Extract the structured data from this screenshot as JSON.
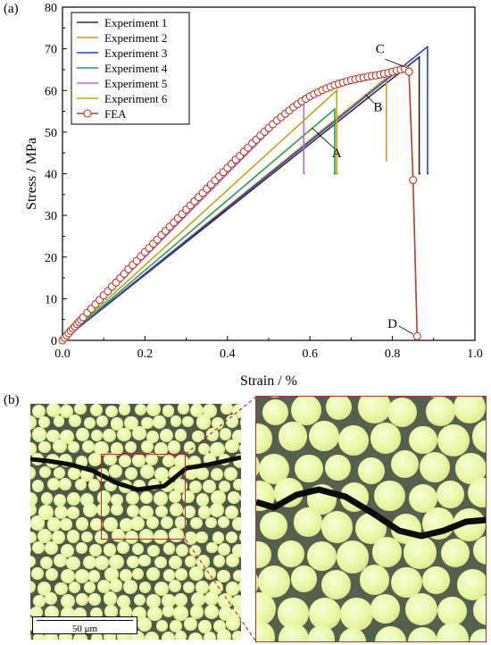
{
  "panel_labels": {
    "a": "(a)",
    "b": "(b)"
  },
  "scale_bar": {
    "label": "50 μm"
  },
  "colors": {
    "Experiment 1": "#2b2b2b",
    "Experiment 2": "#d19b14",
    "Experiment 3": "#2a3fd1",
    "Experiment 4": "#2e9a52",
    "Experiment 5": "#b66ad8",
    "Experiment 6": "#b8a81a",
    "FEA": "#b43a2a",
    "zoom_box": "#b0303a"
  },
  "chart_data": {
    "type": "line",
    "xlabel": "Strain / %",
    "ylabel": "Stress / MPa",
    "xlim": [
      0.0,
      1.0
    ],
    "ylim": [
      0,
      80
    ],
    "x_ticks": [
      "0.0",
      "0.2",
      "0.4",
      "0.6",
      "0.8",
      "1.0"
    ],
    "y_ticks": [
      "0",
      "10",
      "20",
      "30",
      "40",
      "50",
      "60",
      "70",
      "80"
    ],
    "legend_position": "top-left",
    "series": [
      {
        "name": "Experiment 1",
        "x": [
          0.0,
          0.865,
          0.865,
          0.868
        ],
        "y": [
          0.0,
          68.0,
          40.0,
          40.0
        ]
      },
      {
        "name": "Experiment 2",
        "x": [
          0.0,
          0.785,
          0.785,
          0.785
        ],
        "y": [
          0.0,
          63.0,
          43.0,
          43.0
        ]
      },
      {
        "name": "Experiment 3",
        "x": [
          0.0,
          0.885,
          0.885,
          0.888
        ],
        "y": [
          0.0,
          70.5,
          40.0,
          40.0
        ]
      },
      {
        "name": "Experiment 4",
        "x": [
          0.0,
          0.66,
          0.66,
          0.663
        ],
        "y": [
          0.0,
          55.5,
          40.0,
          40.0
        ]
      },
      {
        "name": "Experiment 5",
        "x": [
          0.0,
          0.585,
          0.585,
          0.588
        ],
        "y": [
          0.0,
          58.5,
          40.0,
          40.0
        ]
      },
      {
        "name": "Experiment 6",
        "x": [
          0.0,
          0.665,
          0.665,
          0.668
        ],
        "y": [
          0.0,
          60.0,
          40.0,
          40.0
        ]
      },
      {
        "name": "FEA",
        "x": [
          0.0,
          0.005,
          0.01,
          0.015,
          0.02,
          0.025,
          0.03,
          0.035,
          0.04,
          0.045,
          0.05,
          0.06,
          0.07,
          0.08,
          0.09,
          0.1,
          0.11,
          0.12,
          0.13,
          0.14,
          0.15,
          0.16,
          0.17,
          0.18,
          0.19,
          0.2,
          0.21,
          0.22,
          0.23,
          0.24,
          0.25,
          0.26,
          0.27,
          0.28,
          0.29,
          0.3,
          0.31,
          0.32,
          0.33,
          0.34,
          0.35,
          0.36,
          0.37,
          0.38,
          0.39,
          0.4,
          0.41,
          0.42,
          0.43,
          0.44,
          0.45,
          0.46,
          0.47,
          0.48,
          0.49,
          0.5,
          0.51,
          0.52,
          0.53,
          0.54,
          0.55,
          0.56,
          0.57,
          0.58,
          0.59,
          0.6,
          0.61,
          0.62,
          0.63,
          0.64,
          0.65,
          0.66,
          0.67,
          0.68,
          0.69,
          0.7,
          0.71,
          0.72,
          0.73,
          0.74,
          0.75,
          0.76,
          0.77,
          0.78,
          0.79,
          0.8,
          0.81,
          0.82,
          0.83,
          0.84,
          0.85,
          0.86
        ],
        "y": [
          0.0,
          0.6,
          1.2,
          1.7,
          2.3,
          2.8,
          3.3,
          3.9,
          4.4,
          4.9,
          5.5,
          6.6,
          7.6,
          8.7,
          9.7,
          10.8,
          11.8,
          12.9,
          13.9,
          15.0,
          16.0,
          17.1,
          18.1,
          19.1,
          20.2,
          21.2,
          22.2,
          23.2,
          24.2,
          25.3,
          26.3,
          27.3,
          28.3,
          29.3,
          30.3,
          31.4,
          32.4,
          33.4,
          34.4,
          35.4,
          36.4,
          37.4,
          38.4,
          39.4,
          40.4,
          41.4,
          42.4,
          43.4,
          44.3,
          45.3,
          46.3,
          47.3,
          48.2,
          49.2,
          50.1,
          51.0,
          51.9,
          52.8,
          53.6,
          54.4,
          55.2,
          56.0,
          56.7,
          57.4,
          58.0,
          58.6,
          59.1,
          59.6,
          60.1,
          60.5,
          60.9,
          61.3,
          61.6,
          61.9,
          62.2,
          62.5,
          62.7,
          62.9,
          63.1,
          63.3,
          63.5,
          63.6,
          63.8,
          64.0,
          64.2,
          64.5,
          64.8,
          65.0,
          65.2,
          64.5,
          38.5,
          1.0
        ]
      }
    ],
    "annotations": [
      {
        "label": "A",
        "x": 0.665,
        "y": 44.0
      },
      {
        "label": "B",
        "x": 0.765,
        "y": 55.0
      },
      {
        "label": "C",
        "x": 0.77,
        "y": 69.0
      },
      {
        "label": "D",
        "x": 0.8,
        "y": 3.0
      }
    ]
  }
}
